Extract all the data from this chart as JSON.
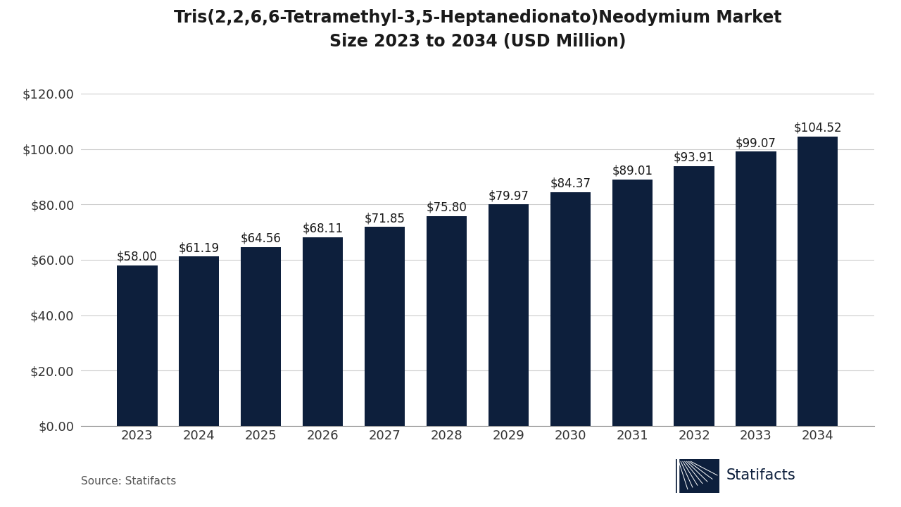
{
  "title": "Tris(2,2,6,6-Tetramethyl-3,5-Heptanedionato)Neodymium Market\nSize 2023 to 2034 (USD Million)",
  "years": [
    "2023",
    "2024",
    "2025",
    "2026",
    "2027",
    "2028",
    "2029",
    "2030",
    "2031",
    "2032",
    "2033",
    "2034"
  ],
  "values": [
    58.0,
    61.19,
    64.56,
    68.11,
    71.85,
    75.8,
    79.97,
    84.37,
    89.01,
    93.91,
    99.07,
    104.52
  ],
  "labels": [
    "$58.00",
    "$61.19",
    "$64.56",
    "$68.11",
    "$71.85",
    "$75.80",
    "$79.97",
    "$84.37",
    "$89.01",
    "$93.91",
    "$99.07",
    "$104.52"
  ],
  "bar_color": "#0d1f3c",
  "background_color": "#ffffff",
  "title_fontsize": 17,
  "tick_fontsize": 13,
  "label_fontsize": 12,
  "source_text": "Source: Statifacts",
  "statifacts_text": "Statifacts",
  "ylim": [
    0,
    130
  ],
  "yticks": [
    0,
    20,
    40,
    60,
    80,
    100,
    120
  ],
  "ytick_labels": [
    "$0.00",
    "$20.00",
    "$40.00",
    "$60.00",
    "$80.00",
    "$100.00",
    "$120.00"
  ],
  "bar_width": 0.65
}
